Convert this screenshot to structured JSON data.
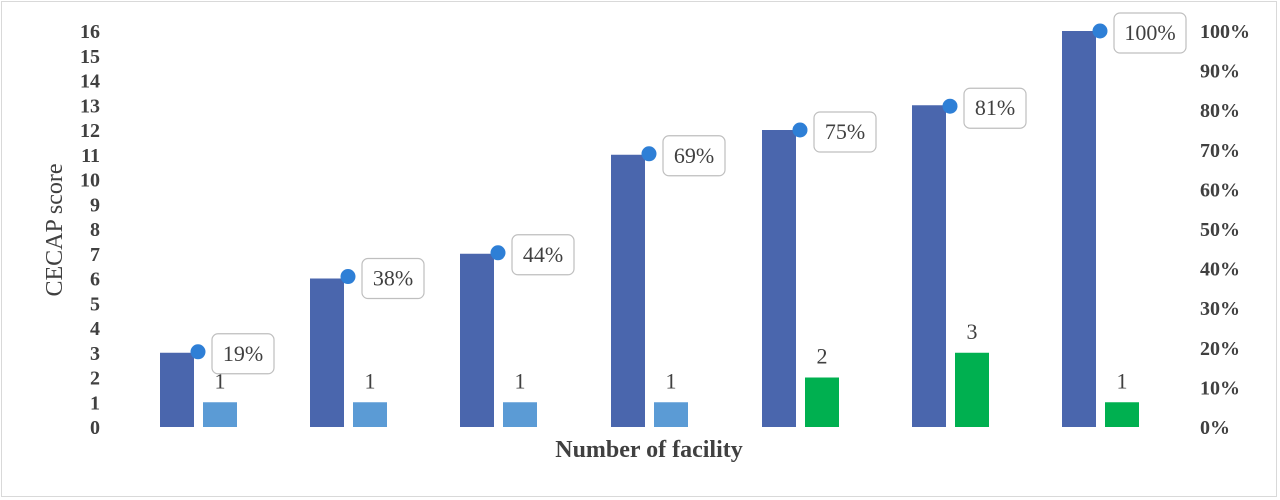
{
  "chart_data": {
    "type": "bar",
    "xlabel": "Number of facility",
    "ylabel": "CECAP score",
    "ylim": [
      0,
      16
    ],
    "y2lim": [
      0,
      1.0
    ],
    "y_ticks": [
      "0",
      "1",
      "2",
      "3",
      "4",
      "5",
      "6",
      "7",
      "8",
      "9",
      "10",
      "11",
      "12",
      "13",
      "14",
      "15",
      "16"
    ],
    "y2_ticks": [
      "0%",
      "10%",
      "20%",
      "30%",
      "40%",
      "50%",
      "60%",
      "70%",
      "80%",
      "90%",
      "100%"
    ],
    "groups": [
      {
        "score": 3,
        "facilities": 1,
        "cumulative": 0.19,
        "cumulative_label": "19%",
        "facility_label": "1",
        "facility_color": "#5b9bd5"
      },
      {
        "score": 6,
        "facilities": 1,
        "cumulative": 0.38,
        "cumulative_label": "38%",
        "facility_label": "1",
        "facility_color": "#5b9bd5"
      },
      {
        "score": 7,
        "facilities": 1,
        "cumulative": 0.44,
        "cumulative_label": "44%",
        "facility_label": "1",
        "facility_color": "#5b9bd5"
      },
      {
        "score": 11,
        "facilities": 1,
        "cumulative": 0.69,
        "cumulative_label": "69%",
        "facility_label": "1",
        "facility_color": "#5b9bd5"
      },
      {
        "score": 12,
        "facilities": 2,
        "cumulative": 0.75,
        "cumulative_label": "75%",
        "facility_label": "2",
        "facility_color": "#00b050"
      },
      {
        "score": 13,
        "facilities": 3,
        "cumulative": 0.81,
        "cumulative_label": "81%",
        "facility_label": "3",
        "facility_color": "#00b050"
      },
      {
        "score": 16,
        "facilities": 1,
        "cumulative": 1.0,
        "cumulative_label": "100%",
        "facility_label": "1",
        "facility_color": "#00b050"
      }
    ],
    "score_color": "#4a66ad",
    "marker_color": "#2e7fd6",
    "grid": false,
    "legend": "none"
  }
}
